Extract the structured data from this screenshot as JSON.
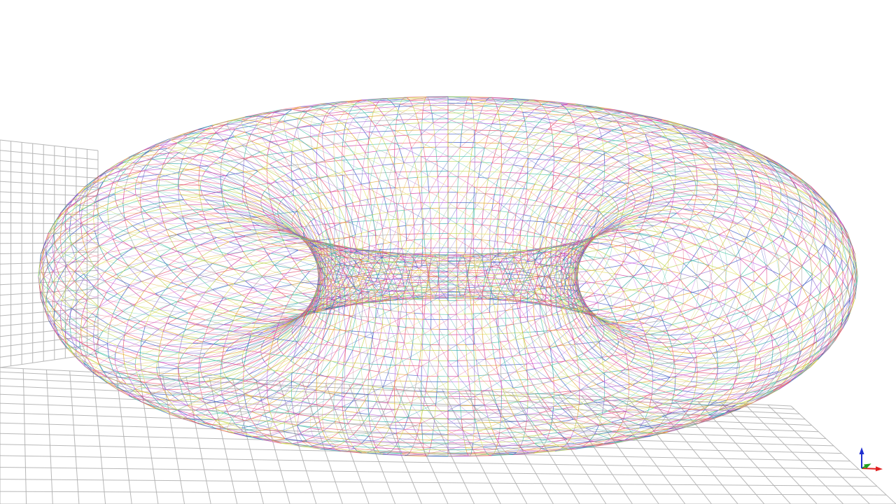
{
  "viewer": {
    "background_color": "#ffffff",
    "model_shape": "torus",
    "render_mode": "wireframe",
    "wire_palette": [
      "#d0309a",
      "#e0a020",
      "#b8d040",
      "#c060e0",
      "#e04060",
      "#40c0a0",
      "#9070d0",
      "#e0e060",
      "#3050c0",
      "#20a0a0",
      "#f06080",
      "#a0a0a0"
    ],
    "ground_grid_color": "#b0b0b0",
    "ground_grid_visible": true,
    "axis_triad": {
      "x_color": "#e02020",
      "y_color": "#20a020",
      "z_color": "#2030d0"
    }
  }
}
